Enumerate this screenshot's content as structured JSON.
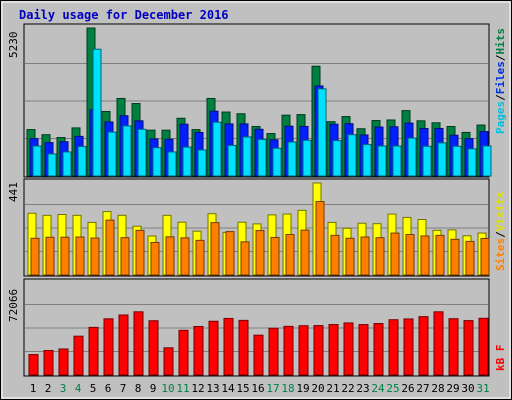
{
  "chart_data": {
    "type": "bar",
    "title": "Daily usage for December 2016",
    "categories": [
      "1",
      "2",
      "3",
      "4",
      "5",
      "6",
      "7",
      "8",
      "9",
      "10",
      "11",
      "12",
      "13",
      "14",
      "15",
      "16",
      "17",
      "18",
      "19",
      "20",
      "21",
      "22",
      "23",
      "24",
      "25",
      "26",
      "27",
      "28",
      "29",
      "30",
      "31"
    ],
    "weekend_days": [
      "3",
      "4",
      "10",
      "11",
      "17",
      "18",
      "24",
      "25",
      "31"
    ],
    "panels": {
      "top": {
        "ymax_label": "5230",
        "ymax": 5230,
        "axis_labels": [
          "Pages",
          "Files",
          "Hits"
        ],
        "series": [
          {
            "name": "Hits",
            "color": "#008040",
            "values": [
              1640,
              1460,
              1360,
              1700,
              5230,
              2280,
              2740,
              2560,
              1620,
              1620,
              2040,
              1640,
              2740,
              2260,
              2200,
              1750,
              1500,
              2150,
              2170,
              3880,
              1920,
              2100,
              1670,
              1960,
              1980,
              2310,
              1950,
              1880,
              1750,
              1540,
              1800
            ]
          },
          {
            "name": "Files",
            "color": "#0020ff",
            "values": [
              1320,
              1180,
              1210,
              1400,
              2340,
              1910,
              2130,
              1950,
              1310,
              1300,
              1830,
              1540,
              2290,
              1840,
              1840,
              1650,
              1280,
              1760,
              1750,
              3180,
              1830,
              1850,
              1450,
              1730,
              1740,
              1870,
              1680,
              1680,
              1440,
              1320,
              1570
            ]
          },
          {
            "name": "Pages",
            "color": "#00e0ff",
            "values": [
              1060,
              780,
              850,
              1040,
              4480,
              1550,
              1770,
              1650,
              1000,
              850,
              1020,
              920,
              1900,
              1080,
              1380,
              1290,
              980,
              1200,
              1260,
              3080,
              1250,
              1460,
              1110,
              1060,
              1060,
              1340,
              1050,
              1170,
              1050,
              960,
              1060
            ]
          }
        ]
      },
      "middle": {
        "ymax_label": "441",
        "ymax": 441,
        "axis_labels": [
          "Sites",
          "Visits"
        ],
        "series": [
          {
            "name": "Visits",
            "color": "#ffff00",
            "values": [
              296,
              286,
              290,
              286,
              252,
              304,
              286,
              234,
              187,
              286,
              253,
              210,
              294,
              204,
              253,
              245,
              288,
              292,
              310,
              441,
              252,
              224,
              248,
              246,
              292,
              276,
              266,
              214,
              216,
              188,
              201
            ]
          },
          {
            "name": "Sites",
            "color": "#ff8000",
            "values": [
              176,
              181,
              181,
              182,
              177,
              263,
              179,
              214,
              156,
              183,
              178,
              166,
              251,
              208,
              159,
              213,
              180,
              194,
              215,
              352,
              190,
              176,
              182,
              179,
              201,
              194,
              187,
              190,
              171,
              161,
              175
            ]
          }
        ]
      },
      "bottom": {
        "ymax_label": "72066",
        "ymax": 72066,
        "axis_labels": [
          "kB F"
        ],
        "series": [
          {
            "name": "kB F",
            "color": "#ff0000",
            "values": [
              16000,
              19200,
              20400,
              30400,
              37300,
              44000,
              47000,
              49500,
              42500,
              21300,
              35000,
              38000,
              42100,
              44300,
              42800,
              31200,
              36600,
              38100,
              38600,
              38700,
              39500,
              40800,
              39500,
              40300,
              43300,
              43900,
              45700,
              49500,
              44100,
              42600,
              44400
            ]
          }
        ]
      }
    }
  }
}
